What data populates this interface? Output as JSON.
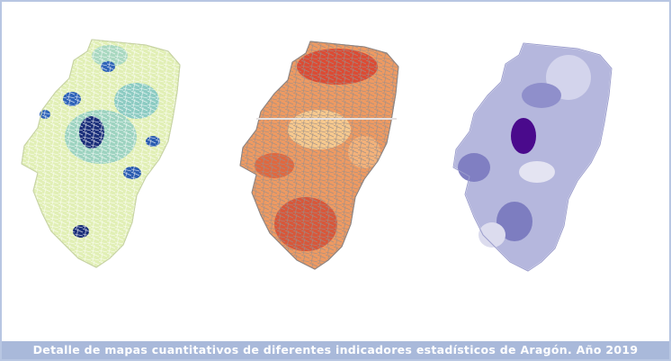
{
  "caption": "Detalle de mapas cuantitativos de diferentes indicadores estadísticos de Aragón. Año 2019"
}
